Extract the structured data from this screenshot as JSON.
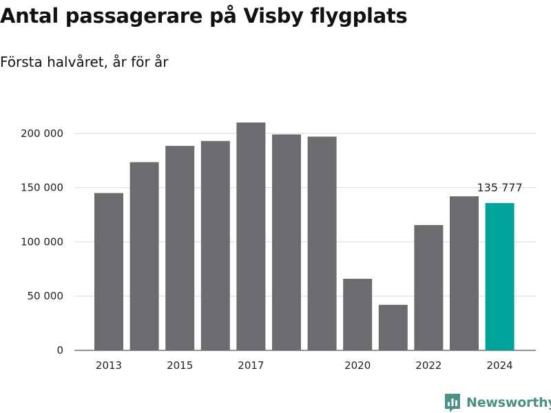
{
  "title": "Antal passagerare på Visby flygplats",
  "subtitle": "Första halvåret, år för år",
  "brand": {
    "name": "Newsworthy",
    "color": "#4a8f88",
    "icon": "newsworthy-logo-icon"
  },
  "chart_data": {
    "type": "bar",
    "categories": [
      "2013",
      "2014",
      "2015",
      "2016",
      "2017",
      "2018",
      "2019",
      "2020",
      "2021",
      "2022",
      "2023",
      "2024"
    ],
    "values": [
      145000,
      173500,
      188500,
      193000,
      210000,
      199000,
      197000,
      66000,
      42000,
      115500,
      142000,
      135777
    ],
    "xtick_labels": [
      "2013",
      "2015",
      "2017",
      "2020",
      "2022",
      "2024"
    ],
    "ylim": [
      0,
      210000
    ],
    "yticks": [
      0,
      50000,
      100000,
      150000,
      200000
    ],
    "ytick_labels": [
      "0",
      "50 000",
      "100 000",
      "150 000",
      "200 000"
    ],
    "grid": true,
    "bar_color": "#6c6b70",
    "highlight_color": "#00a39a",
    "highlight_index": 11,
    "annotation": {
      "category": "2024",
      "text": "135 777"
    }
  }
}
